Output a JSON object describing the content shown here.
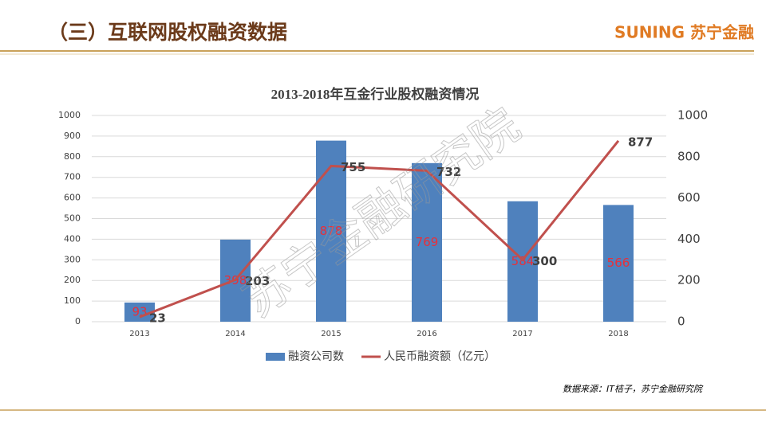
{
  "header": {
    "title": "（三）互联网股权融资数据",
    "logo": "SUNING 苏宁金融"
  },
  "chart_data": {
    "type": "bar-line",
    "title": "2013-2018年互金行业股权融资情况",
    "categories": [
      "2013",
      "2014",
      "2015",
      "2016",
      "2017",
      "2018"
    ],
    "series": [
      {
        "name": "融资公司数",
        "type": "bar",
        "color": "#4f81bd",
        "values": [
          93,
          398,
          878,
          769,
          584,
          566
        ]
      },
      {
        "name": "人民币融资额（亿元）",
        "type": "line",
        "axis": "y2",
        "color": "#c0504d",
        "values": [
          23,
          203,
          755,
          732,
          300,
          877
        ]
      }
    ],
    "ylim": [
      0,
      1000
    ],
    "yticks": [
      0,
      100,
      200,
      300,
      400,
      500,
      600,
      700,
      800,
      900,
      1000
    ],
    "y2lim": [
      0,
      1000
    ],
    "y2ticks": [
      0,
      200,
      400,
      600,
      800,
      1000
    ],
    "grid": true,
    "legend": "bottom"
  },
  "source": "数据来源：IT桔子，苏宁金融研究院",
  "watermark": "苏宁金融研究院"
}
